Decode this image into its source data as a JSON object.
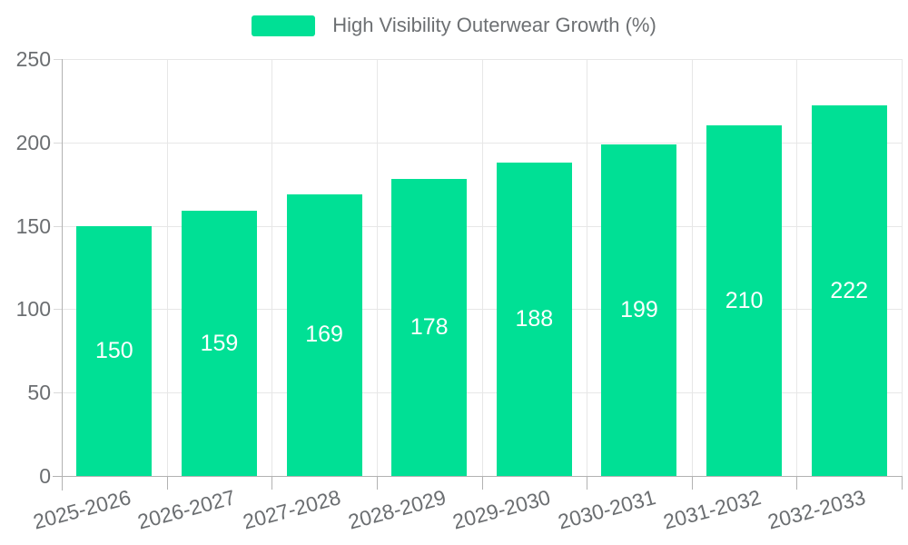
{
  "chart_data": {
    "type": "bar",
    "title": "High Visibility Outerwear Growth (%)",
    "categories": [
      "2025-2026",
      "2026-2027",
      "2027-2028",
      "2028-2029",
      "2029-2030",
      "2030-2031",
      "2031-2032",
      "2032-2033"
    ],
    "series": [
      {
        "name": "High Visibility Outerwear Growth (%)",
        "values": [
          150,
          159,
          169,
          178,
          188,
          199,
          210,
          222
        ]
      }
    ],
    "data_labels": [
      150,
      159,
      169,
      178,
      188,
      199,
      210,
      222
    ],
    "xlabel": "",
    "ylabel": "",
    "ylim": [
      0,
      250
    ],
    "yticks": [
      0,
      50,
      100,
      150,
      200,
      250
    ],
    "grid": true,
    "legend_position": "top",
    "x_label_rotation_deg": -15,
    "bar_color": "#00E095",
    "value_label_color": "#ffffff",
    "axis_text_color": "#6b6e71",
    "grid_color": "#e7e7e7",
    "axis_line_color": "#b2b2b2"
  }
}
